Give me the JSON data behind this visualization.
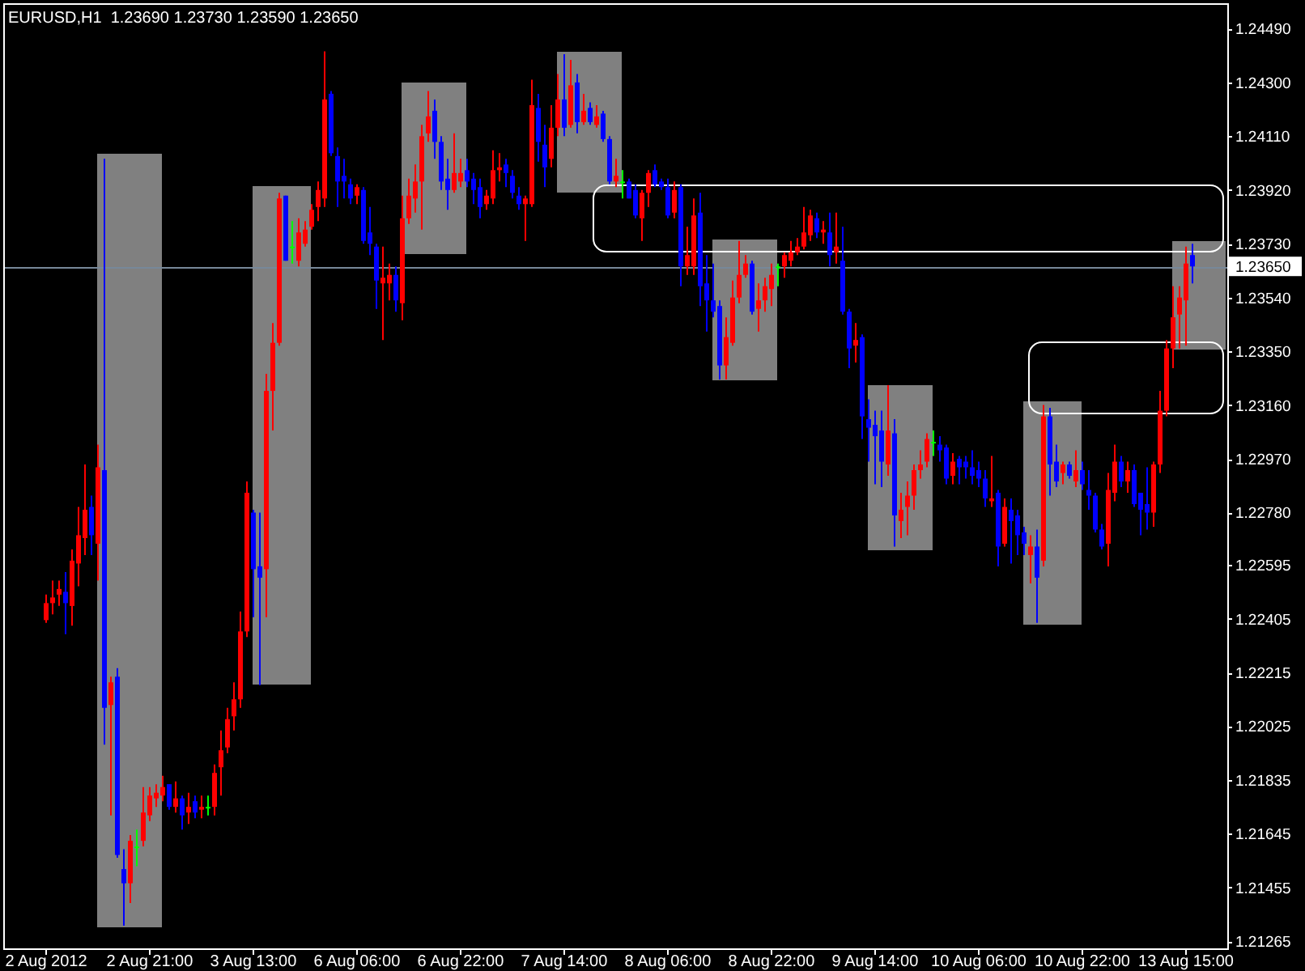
{
  "chart_data": {
    "type": "candlestick",
    "title": "EURUSD,H1  1.23690 1.23730 1.23590 1.23650",
    "categories": [
      "2 Aug 2012",
      null,
      null,
      null,
      null,
      null,
      null,
      null,
      null,
      null,
      null,
      null,
      null,
      null,
      null,
      null,
      "2 Aug 21:00",
      null,
      null,
      null,
      null,
      null,
      null,
      null,
      null,
      null,
      null,
      null,
      null,
      null,
      null,
      null,
      "3 Aug 13:00",
      null,
      null,
      null,
      null,
      null,
      null,
      null,
      null,
      null,
      null,
      null,
      null,
      null,
      null,
      null,
      "6 Aug 06:00",
      null,
      null,
      null,
      null,
      null,
      null,
      null,
      null,
      null,
      null,
      null,
      null,
      null,
      null,
      null,
      "6 Aug 22:00",
      null,
      null,
      null,
      null,
      null,
      null,
      null,
      null,
      null,
      null,
      null,
      null,
      null,
      null,
      null,
      "7 Aug 14:00",
      null,
      null,
      null,
      null,
      null,
      null,
      null,
      null,
      null,
      null,
      null,
      null,
      null,
      null,
      null,
      "8 Aug 06:00",
      null,
      null,
      null,
      null,
      null,
      null,
      null,
      null,
      null,
      null,
      null,
      null,
      null,
      null,
      null,
      "8 Aug 22:00",
      null,
      null,
      null,
      null,
      null,
      null,
      null,
      null,
      null,
      null,
      null,
      null,
      null,
      null,
      null,
      "9 Aug 14:00",
      null,
      null,
      null,
      null,
      null,
      null,
      null,
      null,
      null,
      null,
      null,
      null,
      null,
      null,
      null,
      "10 Aug 06:00",
      null,
      null,
      null,
      null,
      null,
      null,
      null,
      null,
      null,
      null,
      null,
      null,
      null,
      null,
      null,
      "10 Aug 22:00",
      null,
      null,
      null,
      null,
      null,
      null,
      null,
      null,
      null,
      null,
      null,
      null,
      null,
      null,
      null,
      "13 Aug 15:00",
      null
    ],
    "ohlc": [
      [
        1.224,
        1.2249,
        1.2239,
        1.2246
      ],
      [
        1.2246,
        1.2254,
        1.2242,
        1.2248
      ],
      [
        1.2249,
        1.2254,
        1.2245,
        1.2251
      ],
      [
        1.225,
        1.2257,
        1.2235,
        1.2246
      ],
      [
        1.2245,
        1.2265,
        1.2238,
        1.2261
      ],
      [
        1.226,
        1.228,
        1.2252,
        1.227
      ],
      [
        1.2269,
        1.2295,
        1.2263,
        1.2279
      ],
      [
        1.228,
        1.2284,
        1.2263,
        1.227
      ],
      [
        1.2267,
        1.2302,
        1.2254,
        1.2294
      ],
      [
        1.2293,
        1.2403,
        1.2196,
        1.2209
      ],
      [
        1.221,
        1.222,
        1.2171,
        1.2218
      ],
      [
        1.222,
        1.2223,
        1.2156,
        1.2157
      ],
      [
        1.2152,
        1.2159,
        1.2132,
        1.2147
      ],
      [
        1.2147,
        1.2164,
        1.214,
        1.2162
      ],
      [
        1.216,
        1.2166,
        1.2153,
        1.216
      ],
      [
        1.2162,
        1.2181,
        1.216,
        1.2172
      ],
      [
        1.2171,
        1.2181,
        1.2169,
        1.2178
      ],
      [
        1.2177,
        1.2182,
        1.2174,
        1.2179
      ],
      [
        1.2178,
        1.2185,
        1.2176,
        1.2181
      ],
      [
        1.2182,
        1.2182,
        1.2173,
        1.2174
      ],
      [
        1.2174,
        1.2183,
        1.2172,
        1.2177
      ],
      [
        1.2177,
        1.2178,
        1.2166,
        1.2171
      ],
      [
        1.2172,
        1.2179,
        1.2168,
        1.2174
      ],
      [
        1.2176,
        1.2178,
        1.217,
        1.2172
      ],
      [
        1.2173,
        1.2178,
        1.217,
        1.2174
      ],
      [
        1.2174,
        1.2178,
        1.2171,
        1.2174
      ],
      [
        1.2174,
        1.2189,
        1.2171,
        1.2186
      ],
      [
        1.2188,
        1.2201,
        1.2178,
        1.2194
      ],
      [
        1.2195,
        1.2209,
        1.2193,
        1.2205
      ],
      [
        1.2206,
        1.2218,
        1.2201,
        1.2212
      ],
      [
        1.2212,
        1.2243,
        1.2209,
        1.2236
      ],
      [
        1.2236,
        1.2289,
        1.2234,
        1.2285
      ],
      [
        1.2278,
        1.2279,
        1.2241,
        1.2258
      ],
      [
        1.2259,
        1.2278,
        1.2217,
        1.2255
      ],
      [
        1.2258,
        1.2327,
        1.2241,
        1.2321
      ],
      [
        1.2321,
        1.2345,
        1.2307,
        1.2338
      ],
      [
        1.2338,
        1.2391,
        1.2337,
        1.2389
      ],
      [
        1.239,
        1.239,
        1.2367,
        1.2367
      ],
      [
        1.2372,
        1.2381,
        1.2366,
        1.2372
      ],
      [
        1.2367,
        1.2382,
        1.2365,
        1.2377
      ],
      [
        1.2373,
        1.2381,
        1.2372,
        1.2378
      ],
      [
        1.2379,
        1.2387,
        1.2378,
        1.2385
      ],
      [
        1.2386,
        1.2395,
        1.2381,
        1.2392
      ],
      [
        1.2389,
        1.2441,
        1.2386,
        1.2424
      ],
      [
        1.2426,
        1.2427,
        1.2404,
        1.2405
      ],
      [
        1.2404,
        1.2407,
        1.2386,
        1.2395
      ],
      [
        1.2397,
        1.2403,
        1.2389,
        1.2395
      ],
      [
        1.2394,
        1.2396,
        1.2387,
        1.2389
      ],
      [
        1.239,
        1.2394,
        1.2387,
        1.2393
      ],
      [
        1.2392,
        1.2393,
        1.2373,
        1.2374
      ],
      [
        1.2377,
        1.2386,
        1.2369,
        1.2373
      ],
      [
        1.2372,
        1.2373,
        1.235,
        1.236
      ],
      [
        1.2359,
        1.2372,
        1.2339,
        1.2361
      ],
      [
        1.2359,
        1.2366,
        1.2353,
        1.2362
      ],
      [
        1.2362,
        1.2365,
        1.2349,
        1.2353
      ],
      [
        1.2352,
        1.239,
        1.2346,
        1.2382
      ],
      [
        1.2382,
        1.2396,
        1.238,
        1.239
      ],
      [
        1.2389,
        1.2401,
        1.2384,
        1.2395
      ],
      [
        1.2395,
        1.2415,
        1.2378,
        1.2411
      ],
      [
        1.2412,
        1.2427,
        1.2409,
        1.2418
      ],
      [
        1.242,
        1.2424,
        1.2403,
        1.2409
      ],
      [
        1.2409,
        1.2411,
        1.2392,
        1.2395
      ],
      [
        1.2396,
        1.2403,
        1.2385,
        1.2392
      ],
      [
        1.2392,
        1.2412,
        1.2391,
        1.2398
      ],
      [
        1.2395,
        1.2403,
        1.2393,
        1.2398
      ],
      [
        1.2399,
        1.2403,
        1.2393,
        1.2395
      ],
      [
        1.2396,
        1.2398,
        1.2387,
        1.2392
      ],
      [
        1.2393,
        1.2396,
        1.2382,
        1.2386
      ],
      [
        1.2387,
        1.2392,
        1.2385,
        1.239
      ],
      [
        1.2389,
        1.2406,
        1.2387,
        1.2399
      ],
      [
        1.2399,
        1.2405,
        1.2395,
        1.24
      ],
      [
        1.2401,
        1.2403,
        1.2393,
        1.2398
      ],
      [
        1.2397,
        1.2399,
        1.2389,
        1.2391
      ],
      [
        1.239,
        1.2393,
        1.2385,
        1.2387
      ],
      [
        1.2387,
        1.239,
        1.2374,
        1.2389
      ],
      [
        1.2387,
        1.2431,
        1.2386,
        1.2422
      ],
      [
        1.2421,
        1.2426,
        1.2402,
        1.2409
      ],
      [
        1.2408,
        1.2415,
        1.2393,
        1.24
      ],
      [
        1.2403,
        1.2422,
        1.24,
        1.2414
      ],
      [
        1.2414,
        1.2433,
        1.2411,
        1.2424
      ],
      [
        1.2424,
        1.244,
        1.2411,
        1.2414
      ],
      [
        1.2415,
        1.2438,
        1.2414,
        1.2429
      ],
      [
        1.243,
        1.2433,
        1.2412,
        1.2416
      ],
      [
        1.2416,
        1.2426,
        1.2415,
        1.242
      ],
      [
        1.2421,
        1.2423,
        1.2415,
        1.2416
      ],
      [
        1.2415,
        1.2422,
        1.2414,
        1.2418
      ],
      [
        1.2419,
        1.242,
        1.2409,
        1.241
      ],
      [
        1.241,
        1.2411,
        1.2394,
        1.2395
      ],
      [
        1.2395,
        1.2403,
        1.2393,
        1.2397
      ],
      [
        1.2395,
        1.2399,
        1.2389,
        1.2395
      ],
      [
        1.2395,
        1.2396,
        1.2389,
        1.2389
      ],
      [
        1.2392,
        1.2394,
        1.2382,
        1.2383
      ],
      [
        1.2382,
        1.2392,
        1.2374,
        1.2391
      ],
      [
        1.2391,
        1.2399,
        1.2386,
        1.2398
      ],
      [
        1.2399,
        1.2401,
        1.2393,
        1.2394
      ],
      [
        1.2395,
        1.2396,
        1.2392,
        1.2393
      ],
      [
        1.2393,
        1.2396,
        1.2382,
        1.2383
      ],
      [
        1.2384,
        1.2395,
        1.2382,
        1.2392
      ],
      [
        1.2393,
        1.2394,
        1.2358,
        1.2365
      ],
      [
        1.2365,
        1.2379,
        1.2362,
        1.2369
      ],
      [
        1.2365,
        1.2389,
        1.2362,
        1.2383
      ],
      [
        1.2384,
        1.2391,
        1.2351,
        1.2358
      ],
      [
        1.2359,
        1.2369,
        1.2342,
        1.2353
      ],
      [
        1.2353,
        1.2366,
        1.2347,
        1.2349
      ],
      [
        1.2351,
        1.2353,
        1.2325,
        1.233
      ],
      [
        1.233,
        1.2347,
        1.2325,
        1.234
      ],
      [
        1.2338,
        1.236,
        1.2337,
        1.2354
      ],
      [
        1.2354,
        1.2374,
        1.2352,
        1.2362
      ],
      [
        1.2362,
        1.2369,
        1.2361,
        1.2366
      ],
      [
        1.2366,
        1.2367,
        1.2348,
        1.2349
      ],
      [
        1.235,
        1.2359,
        1.2342,
        1.2353
      ],
      [
        1.2353,
        1.2361,
        1.2349,
        1.2358
      ],
      [
        1.2357,
        1.2366,
        1.2351,
        1.2362
      ],
      [
        1.2365,
        1.2366,
        1.2358,
        1.2365
      ],
      [
        1.2365,
        1.237,
        1.2361,
        1.2369
      ],
      [
        1.2367,
        1.2374,
        1.2365,
        1.237
      ],
      [
        1.237,
        1.2375,
        1.2369,
        1.2372
      ],
      [
        1.2372,
        1.2386,
        1.2371,
        1.2377
      ],
      [
        1.2376,
        1.2385,
        1.2374,
        1.2383
      ],
      [
        1.2382,
        1.2384,
        1.2375,
        1.2377
      ],
      [
        1.2377,
        1.2381,
        1.2373,
        1.2378
      ],
      [
        1.2377,
        1.2384,
        1.2365,
        1.2369
      ],
      [
        1.237,
        1.2384,
        1.2366,
        1.2372
      ],
      [
        1.2367,
        1.2379,
        1.2348,
        1.2349
      ],
      [
        1.2349,
        1.235,
        1.2329,
        1.2336
      ],
      [
        1.2337,
        1.2345,
        1.2331,
        1.2339
      ],
      [
        1.234,
        1.2341,
        1.2304,
        1.2312
      ],
      [
        1.2311,
        1.2318,
        1.2296,
        1.2308
      ],
      [
        1.2309,
        1.2314,
        1.2288,
        1.2305
      ],
      [
        1.2307,
        1.2314,
        1.2287,
        1.2296
      ],
      [
        1.2295,
        1.2323,
        1.2291,
        1.2307
      ],
      [
        1.2306,
        1.2311,
        1.2266,
        1.2277
      ],
      [
        1.2275,
        1.2285,
        1.2269,
        1.2279
      ],
      [
        1.228,
        1.2289,
        1.227,
        1.2284
      ],
      [
        1.2284,
        1.2295,
        1.2279,
        1.2293
      ],
      [
        1.2293,
        1.23,
        1.229,
        1.2295
      ],
      [
        1.2296,
        1.2306,
        1.2294,
        1.2304
      ],
      [
        1.2303,
        1.2307,
        1.2298,
        1.2303
      ],
      [
        1.2302,
        1.2305,
        1.2296,
        1.23
      ],
      [
        1.2301,
        1.2302,
        1.2288,
        1.229
      ],
      [
        1.2291,
        1.2299,
        1.2288,
        1.2296
      ],
      [
        1.2297,
        1.2298,
        1.2288,
        1.2294
      ],
      [
        1.2296,
        1.2298,
        1.229,
        1.2294
      ],
      [
        1.2294,
        1.23,
        1.2288,
        1.2291
      ],
      [
        1.2293,
        1.2296,
        1.2287,
        1.229
      ],
      [
        1.229,
        1.2293,
        1.228,
        1.2283
      ],
      [
        1.2282,
        1.2298,
        1.228,
        1.2283
      ],
      [
        1.2285,
        1.2286,
        1.2259,
        1.2266
      ],
      [
        1.2267,
        1.2283,
        1.2266,
        1.228
      ],
      [
        1.2279,
        1.2283,
        1.226,
        1.2275
      ],
      [
        1.2277,
        1.2279,
        1.2263,
        1.227
      ],
      [
        1.2271,
        1.2273,
        1.2263,
        1.2267
      ],
      [
        1.2263,
        1.227,
        1.2253,
        1.2266
      ],
      [
        1.2266,
        1.2272,
        1.2239,
        1.2255
      ],
      [
        1.2261,
        1.2316,
        1.2259,
        1.2312
      ],
      [
        1.2312,
        1.2315,
        1.2284,
        1.2295
      ],
      [
        1.2296,
        1.2302,
        1.2287,
        1.2289
      ],
      [
        1.2292,
        1.2296,
        1.2288,
        1.2295
      ],
      [
        1.2295,
        1.2296,
        1.229,
        1.2291
      ],
      [
        1.2289,
        1.23,
        1.2287,
        1.2293
      ],
      [
        1.2293,
        1.2296,
        1.2286,
        1.2288
      ],
      [
        1.2286,
        1.2293,
        1.2279,
        1.2284
      ],
      [
        1.2284,
        1.2285,
        1.2271,
        1.2272
      ],
      [
        1.2272,
        1.2274,
        1.2265,
        1.2266
      ],
      [
        1.2267,
        1.2292,
        1.2259,
        1.2286
      ],
      [
        1.2285,
        1.2302,
        1.2282,
        1.2296
      ],
      [
        1.2296,
        1.2298,
        1.2287,
        1.2289
      ],
      [
        1.2289,
        1.2296,
        1.2285,
        1.2293
      ],
      [
        1.2293,
        1.2295,
        1.228,
        1.2281
      ],
      [
        1.2285,
        1.2285,
        1.227,
        1.2279
      ],
      [
        1.2281,
        1.2294,
        1.2272,
        1.2278
      ],
      [
        1.2278,
        1.2296,
        1.2273,
        1.2295
      ],
      [
        1.2295,
        1.2321,
        1.2292,
        1.2314
      ],
      [
        1.2314,
        1.2339,
        1.2312,
        1.2336
      ],
      [
        1.2336,
        1.2358,
        1.2329,
        1.2347
      ],
      [
        1.2348,
        1.2358,
        1.2336,
        1.2354
      ],
      [
        1.2353,
        1.2372,
        1.2337,
        1.2366
      ],
      [
        1.2369,
        1.2373,
        1.2359,
        1.2365
      ]
    ],
    "colors": [
      "#ff0000",
      "#ff0000",
      "#ff0000",
      "#0000ff",
      "#ff0000",
      "#ff0000",
      "#ff0000",
      "#0000ff",
      "#ff0000",
      "#0000ff",
      "#ff0000",
      "#0000ff",
      "#0000ff",
      "#ff0000",
      "#00ff00",
      "#ff0000",
      "#ff0000",
      "#ff0000",
      "#ff0000",
      "#0000ff",
      "#ff0000",
      "#0000ff",
      "#ff0000",
      "#0000ff",
      "#ff0000",
      "#00ff00",
      "#ff0000",
      "#ff0000",
      "#ff0000",
      "#ff0000",
      "#ff0000",
      "#ff0000",
      "#0000ff",
      "#0000ff",
      "#ff0000",
      "#ff0000",
      "#ff0000",
      "#0000ff",
      "#00ff00",
      "#ff0000",
      "#ff0000",
      "#ff0000",
      "#ff0000",
      "#ff0000",
      "#0000ff",
      "#0000ff",
      "#0000ff",
      "#0000ff",
      "#ff0000",
      "#0000ff",
      "#0000ff",
      "#0000ff",
      "#ff0000",
      "#ff0000",
      "#0000ff",
      "#ff0000",
      "#ff0000",
      "#ff0000",
      "#ff0000",
      "#ff0000",
      "#0000ff",
      "#0000ff",
      "#0000ff",
      "#ff0000",
      "#ff0000",
      "#0000ff",
      "#0000ff",
      "#0000ff",
      "#ff0000",
      "#ff0000",
      "#ff0000",
      "#0000ff",
      "#0000ff",
      "#0000ff",
      "#ff0000",
      "#ff0000",
      "#0000ff",
      "#0000ff",
      "#ff0000",
      "#ff0000",
      "#0000ff",
      "#ff0000",
      "#0000ff",
      "#ff0000",
      "#0000ff",
      "#ff0000",
      "#0000ff",
      "#0000ff",
      "#ff0000",
      "#00ff00",
      "#0000ff",
      "#0000ff",
      "#ff0000",
      "#ff0000",
      "#0000ff",
      "#0000ff",
      "#0000ff",
      "#ff0000",
      "#0000ff",
      "#ff0000",
      "#ff0000",
      "#0000ff",
      "#0000ff",
      "#0000ff",
      "#0000ff",
      "#ff0000",
      "#ff0000",
      "#ff0000",
      "#ff0000",
      "#0000ff",
      "#ff0000",
      "#ff0000",
      "#ff0000",
      "#00ff00",
      "#ff0000",
      "#ff0000",
      "#ff0000",
      "#ff0000",
      "#ff0000",
      "#0000ff",
      "#ff0000",
      "#0000ff",
      "#ff0000",
      "#0000ff",
      "#0000ff",
      "#ff0000",
      "#0000ff",
      "#0000ff",
      "#0000ff",
      "#0000ff",
      "#ff0000",
      "#0000ff",
      "#ff0000",
      "#ff0000",
      "#ff0000",
      "#ff0000",
      "#ff0000",
      "#00ff00",
      "#0000ff",
      "#0000ff",
      "#ff0000",
      "#0000ff",
      "#0000ff",
      "#0000ff",
      "#0000ff",
      "#0000ff",
      "#ff0000",
      "#0000ff",
      "#ff0000",
      "#0000ff",
      "#0000ff",
      "#0000ff",
      "#ff0000",
      "#0000ff",
      "#ff0000",
      "#0000ff",
      "#0000ff",
      "#ff0000",
      "#0000ff",
      "#ff0000",
      "#0000ff",
      "#0000ff",
      "#0000ff",
      "#0000ff",
      "#ff0000",
      "#ff0000",
      "#0000ff",
      "#ff0000",
      "#0000ff",
      "#0000ff",
      "#0000ff",
      "#ff0000",
      "#ff0000",
      "#ff0000",
      "#ff0000",
      "#ff0000",
      "#ff0000",
      "#0000ff"
    ],
    "ylim": [
      1.2124,
      1.2458
    ],
    "yticks": [
      {
        "value": 1.2449,
        "label": "1.24490"
      },
      {
        "value": 1.243,
        "label": "1.24300"
      },
      {
        "value": 1.2411,
        "label": "1.24110"
      },
      {
        "value": 1.2392,
        "label": "1.23920"
      },
      {
        "value": 1.2373,
        "label": "1.23730"
      },
      {
        "value": 1.2354,
        "label": "1.23540"
      },
      {
        "value": 1.2335,
        "label": "1.23350"
      },
      {
        "value": 1.2316,
        "label": "1.23160"
      },
      {
        "value": 1.2297,
        "label": "1.22970"
      },
      {
        "value": 1.2278,
        "label": "1.22780"
      },
      {
        "value": 1.22595,
        "label": "1.22595"
      },
      {
        "value": 1.22405,
        "label": "1.22405"
      },
      {
        "value": 1.22215,
        "label": "1.22215"
      },
      {
        "value": 1.22025,
        "label": "1.22025"
      },
      {
        "value": 1.21835,
        "label": "1.21835"
      },
      {
        "value": 1.21645,
        "label": "1.21645"
      },
      {
        "value": 1.21455,
        "label": "1.21455"
      },
      {
        "value": 1.21265,
        "label": "1.21265"
      }
    ],
    "ref_lines": [
      {
        "axis": "y",
        "value": 1.2365,
        "label": "1.23650",
        "color": "#778899"
      }
    ]
  }
}
